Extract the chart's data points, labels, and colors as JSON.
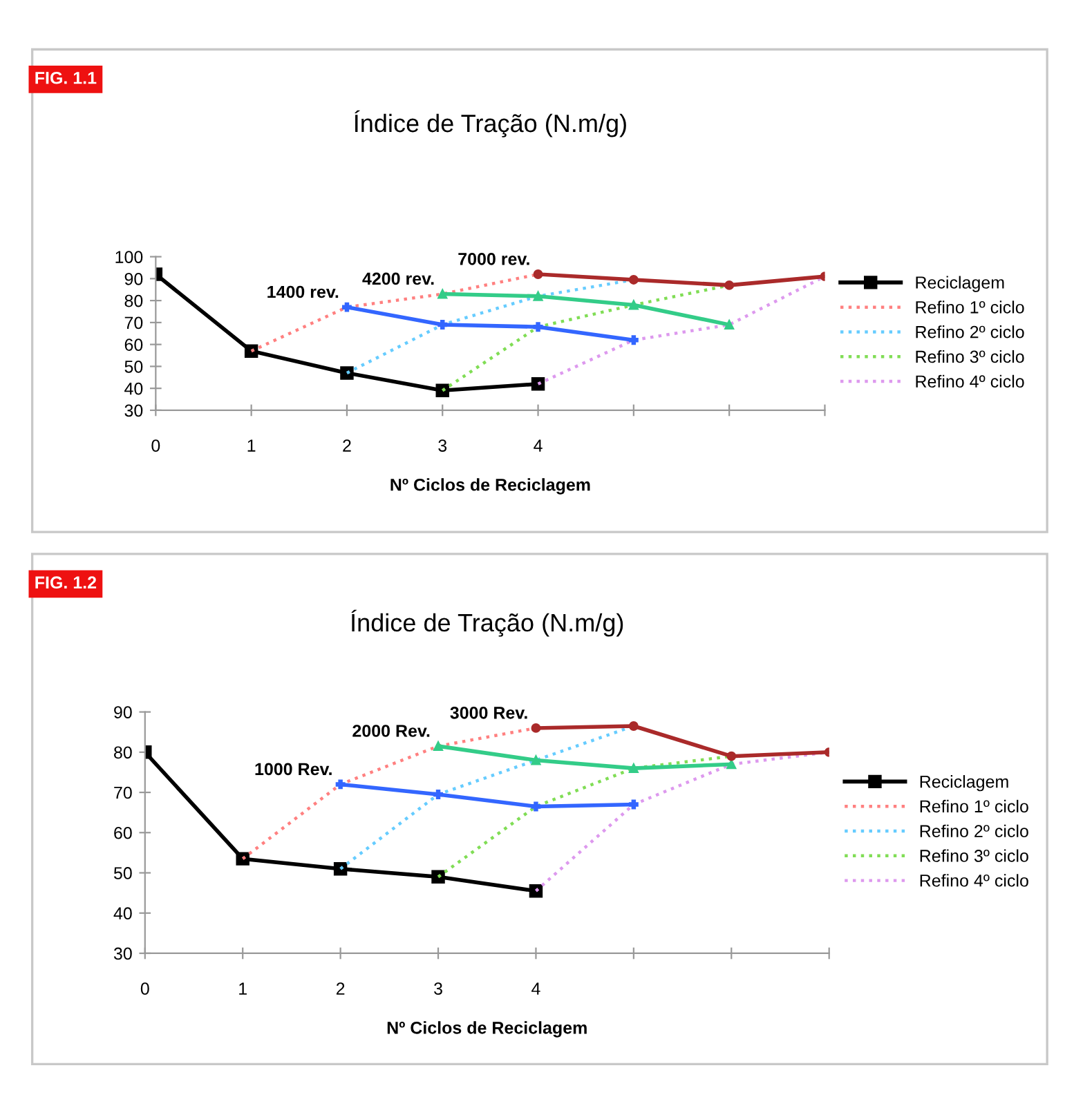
{
  "chart_data": [
    {
      "type": "line",
      "title": "Índice de Tração (N.m/g)",
      "xlabel": "Nº Ciclos de Reciclagem",
      "categories": [
        "0",
        "1",
        "2",
        "3",
        "4",
        null,
        null,
        null
      ],
      "ylim": [
        30,
        100
      ],
      "yticks": [
        30,
        40,
        50,
        60,
        70,
        80,
        90,
        100
      ],
      "grid": false,
      "legend": "right",
      "annotations": [
        "FIG. 1.1",
        {
          "text": "1400 rev.",
          "x": "2",
          "y": 77
        },
        {
          "text": "4200 rev.",
          "x": "3",
          "y": 83
        },
        {
          "text": "7000 rev.",
          "x": "4",
          "y": 92
        }
      ],
      "series": [
        {
          "name": "Reciclagem",
          "color": "#000000",
          "marker": "square",
          "line_style": "solid",
          "values": [
            92,
            57,
            47,
            39,
            42,
            null,
            null,
            null
          ]
        },
        {
          "name": "Refino 1º ciclo",
          "color": "#ff8080",
          "marker": "none",
          "line_style": "dotted",
          "values": [
            null,
            57,
            77,
            83,
            92,
            null,
            null,
            null
          ]
        },
        {
          "name": "Refino 2º ciclo",
          "color": "#66ccff",
          "marker": "none",
          "line_style": "dotted",
          "values": [
            null,
            null,
            47,
            69,
            82,
            89.5,
            null,
            null
          ]
        },
        {
          "name": "Refino 3º ciclo",
          "color": "#80dd55",
          "marker": "none",
          "line_style": "dotted",
          "values": [
            null,
            null,
            null,
            39,
            68,
            78,
            87,
            null
          ]
        },
        {
          "name": "Refino 4º ciclo",
          "color": "#dd99ee",
          "marker": "none",
          "line_style": "dotted",
          "values": [
            null,
            null,
            null,
            null,
            42,
            62,
            69,
            91
          ]
        },
        {
          "color": "#3366ff",
          "marker": "cross",
          "line_style": "solid",
          "values": [
            null,
            null,
            77,
            69,
            68,
            62,
            null,
            null
          ]
        },
        {
          "color": "#33cc88",
          "marker": "triangle",
          "line_style": "solid",
          "values": [
            null,
            null,
            null,
            83,
            82,
            78,
            69,
            null
          ]
        },
        {
          "color": "#aa2a2a",
          "marker": "circle",
          "line_style": "solid",
          "values": [
            null,
            null,
            null,
            null,
            92,
            89.5,
            87,
            91
          ]
        }
      ]
    },
    {
      "type": "line",
      "title": "Índice de Tração (N.m/g)",
      "xlabel": "Nº Ciclos de Reciclagem",
      "categories": [
        "0",
        "1",
        "2",
        "3",
        "4",
        null,
        null,
        null
      ],
      "ylim": [
        30,
        90
      ],
      "yticks": [
        30,
        40,
        50,
        60,
        70,
        80,
        90
      ],
      "grid": false,
      "legend": "right",
      "annotations": [
        "FIG. 1.2",
        {
          "text": "1000 Rev.",
          "x": "2",
          "y": 72
        },
        {
          "text": "2000 Rev.",
          "x": "3",
          "y": 81.5
        },
        {
          "text": "3000 Rev.",
          "x": "4",
          "y": 86
        }
      ],
      "series": [
        {
          "name": "Reciclagem",
          "color": "#000000",
          "marker": "square",
          "line_style": "solid",
          "values": [
            80,
            53.5,
            51,
            49,
            45.5,
            null,
            null,
            null
          ]
        },
        {
          "name": "Refino 1º ciclo",
          "color": "#ff8080",
          "marker": "none",
          "line_style": "dotted",
          "values": [
            null,
            53.5,
            72,
            81.5,
            86,
            null,
            null,
            null
          ]
        },
        {
          "name": "Refino 2º ciclo",
          "color": "#66ccff",
          "marker": "none",
          "line_style": "dotted",
          "values": [
            null,
            null,
            51,
            69.5,
            78,
            86.5,
            null,
            null
          ]
        },
        {
          "name": "Refino 3º ciclo",
          "color": "#80dd55",
          "marker": "none",
          "line_style": "dotted",
          "values": [
            null,
            null,
            null,
            49,
            66.5,
            76,
            79,
            null
          ]
        },
        {
          "name": "Refino 4º ciclo",
          "color": "#dd99ee",
          "marker": "none",
          "line_style": "dotted",
          "values": [
            null,
            null,
            null,
            null,
            45.5,
            67,
            77,
            80
          ]
        },
        {
          "color": "#3366ff",
          "marker": "cross",
          "line_style": "solid",
          "values": [
            null,
            null,
            72,
            69.5,
            66.5,
            67,
            null,
            null
          ]
        },
        {
          "color": "#33cc88",
          "marker": "triangle",
          "line_style": "solid",
          "values": [
            null,
            null,
            null,
            81.5,
            78,
            76,
            77,
            null
          ]
        },
        {
          "color": "#aa2a2a",
          "marker": "circle",
          "line_style": "solid",
          "values": [
            null,
            null,
            null,
            null,
            86,
            86.5,
            79,
            80
          ]
        }
      ]
    }
  ]
}
